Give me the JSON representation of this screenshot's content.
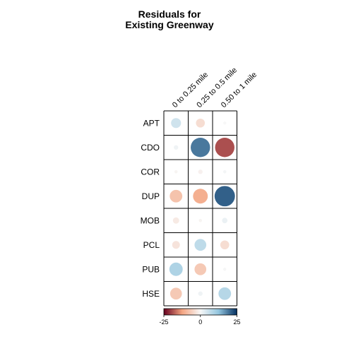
{
  "chart_data": {
    "type": "heatmap",
    "title_lines": [
      "Residuals for",
      "Existing Greenway"
    ],
    "columns": [
      "0 to 0.25 mile",
      "0.25 to 0.5 mile",
      "0.50 to 1 mile"
    ],
    "rows": [
      "APT",
      "CDO",
      "COR",
      "DUP",
      "MOB",
      "PCL",
      "PUB",
      "HSE"
    ],
    "values": [
      [
        5,
        -4,
        0
      ],
      [
        1,
        19,
        -19
      ],
      [
        -0.5,
        -1,
        0.5
      ],
      [
        -8,
        -11,
        21
      ],
      [
        -2,
        -0.5,
        1.5
      ],
      [
        -3,
        7,
        -4
      ],
      [
        9,
        -7,
        0.3
      ],
      [
        -7,
        1,
        8
      ]
    ],
    "colorbar": {
      "min": -25,
      "max": 25,
      "tick_labels": [
        "-25",
        "0",
        "25"
      ]
    },
    "colors": {
      "negative": "#67001F",
      "mid_negative": "#F4A582",
      "zero": "#F7F7F7",
      "mid_positive": "#92C5DE",
      "positive": "#053061"
    }
  }
}
